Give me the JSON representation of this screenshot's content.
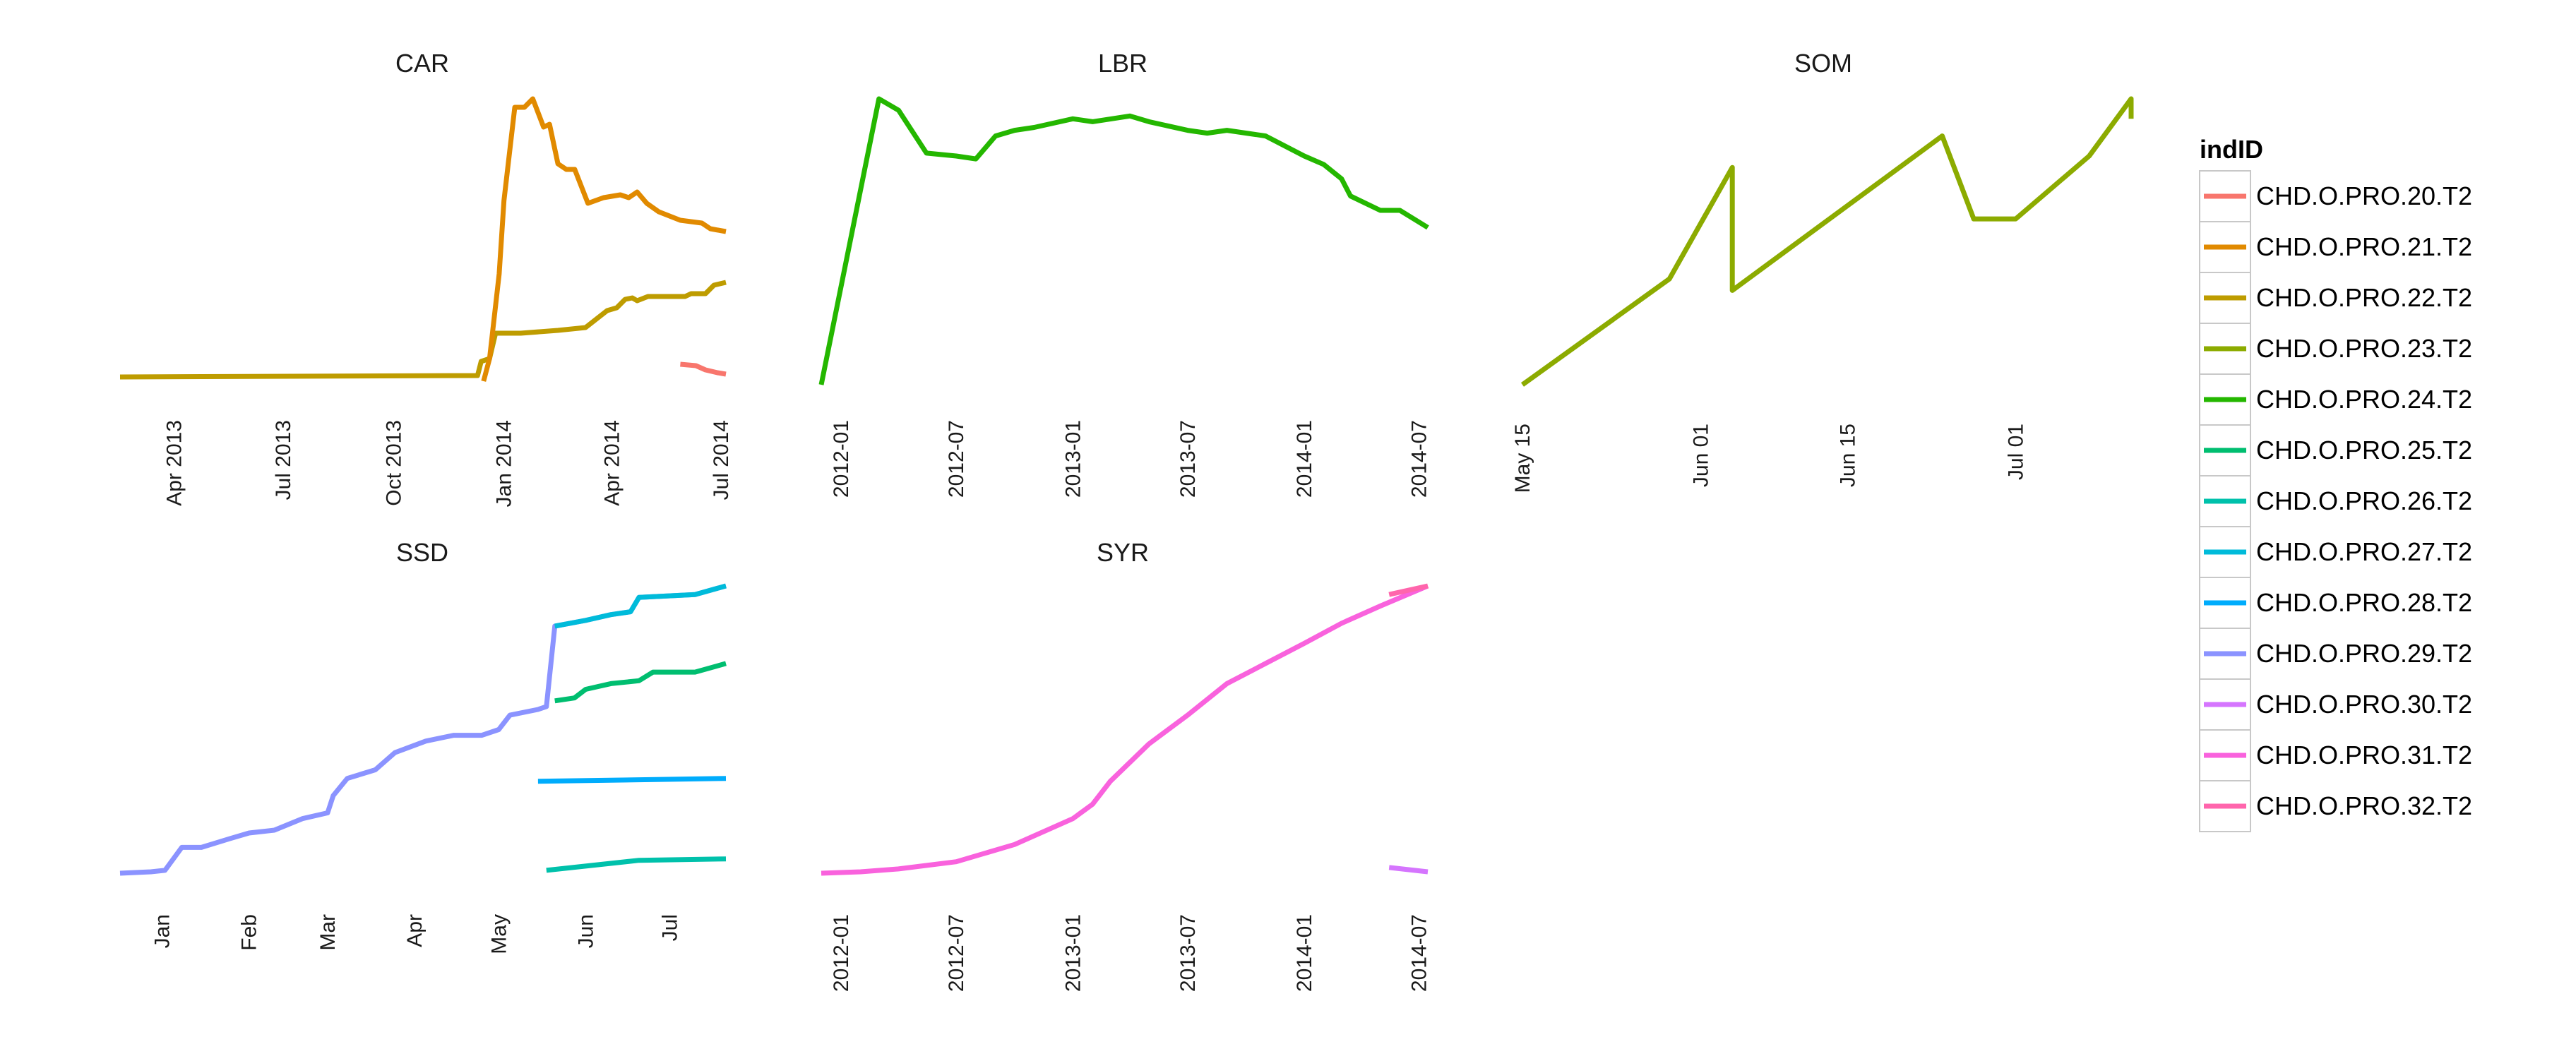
{
  "chart_data": {
    "type": "line",
    "layout": "facets",
    "y_axis_shown": false,
    "grid": false,
    "legend": {
      "title": "indID",
      "position": "right",
      "entries": [
        {
          "name": "CHD.O.PRO.20.T2",
          "color": "#F8766D"
        },
        {
          "name": "CHD.O.PRO.21.T2",
          "color": "#E18A00"
        },
        {
          "name": "CHD.O.PRO.22.T2",
          "color": "#BE9C00"
        },
        {
          "name": "CHD.O.PRO.23.T2",
          "color": "#8CAB00"
        },
        {
          "name": "CHD.O.PRO.24.T2",
          "color": "#24B700"
        },
        {
          "name": "CHD.O.PRO.25.T2",
          "color": "#00BE70"
        },
        {
          "name": "CHD.O.PRO.26.T2",
          "color": "#00C1AB"
        },
        {
          "name": "CHD.O.PRO.27.T2",
          "color": "#00BBDA"
        },
        {
          "name": "CHD.O.PRO.28.T2",
          "color": "#00ACFC"
        },
        {
          "name": "CHD.O.PRO.29.T2",
          "color": "#8B93FF"
        },
        {
          "name": "CHD.O.PRO.30.T2",
          "color": "#D575FE"
        },
        {
          "name": "CHD.O.PRO.31.T2",
          "color": "#F962DD"
        },
        {
          "name": "CHD.O.PRO.32.T2",
          "color": "#FF65AC"
        }
      ]
    },
    "panels": [
      {
        "title": "CAR",
        "xlim": [
          "2013-02-15",
          "2014-07-05"
        ],
        "ylim": [
          0,
          100
        ],
        "ticks": [
          {
            "date": "2013-04-01",
            "label": "Apr 2013"
          },
          {
            "date": "2013-07-01",
            "label": "Jul 2013"
          },
          {
            "date": "2013-10-01",
            "label": "Oct 2013"
          },
          {
            "date": "2014-01-01",
            "label": "Jan 2014"
          },
          {
            "date": "2014-04-01",
            "label": "Apr 2014"
          },
          {
            "date": "2014-07-01",
            "label": "Jul 2014"
          }
        ],
        "series": [
          {
            "name": "CHD.O.PRO.22.T2",
            "points": [
              [
                "2013-02-15",
                1.5
              ],
              [
                "2013-12-10",
                2
              ],
              [
                "2013-12-13",
                7
              ],
              [
                "2013-12-20",
                8
              ],
              [
                "2013-12-25",
                17
              ],
              [
                "2014-01-15",
                17
              ],
              [
                "2014-02-15",
                18
              ],
              [
                "2014-03-10",
                19
              ],
              [
                "2014-03-28",
                25
              ],
              [
                "2014-04-05",
                26
              ],
              [
                "2014-04-12",
                29
              ],
              [
                "2014-04-18",
                29.5
              ],
              [
                "2014-04-22",
                28.5
              ],
              [
                "2014-05-01",
                30
              ],
              [
                "2014-06-01",
                30
              ],
              [
                "2014-06-06",
                31
              ],
              [
                "2014-06-18",
                31
              ],
              [
                "2014-06-25",
                34
              ],
              [
                "2014-07-05",
                35
              ]
            ]
          },
          {
            "name": "CHD.O.PRO.21.T2",
            "points": [
              [
                "2013-12-15",
                0
              ],
              [
                "2013-12-20",
                8
              ],
              [
                "2013-12-28",
                38
              ],
              [
                "2014-01-01",
                64
              ],
              [
                "2014-01-10",
                97
              ],
              [
                "2014-01-18",
                97
              ],
              [
                "2014-01-25",
                100
              ],
              [
                "2014-02-03",
                90
              ],
              [
                "2014-02-08",
                91
              ],
              [
                "2014-02-15",
                77
              ],
              [
                "2014-02-22",
                75
              ],
              [
                "2014-03-01",
                75
              ],
              [
                "2014-03-12",
                63
              ],
              [
                "2014-03-25",
                65
              ],
              [
                "2014-04-08",
                66
              ],
              [
                "2014-04-15",
                65
              ],
              [
                "2014-04-22",
                67
              ],
              [
                "2014-04-30",
                63
              ],
              [
                "2014-05-10",
                60
              ],
              [
                "2014-05-28",
                57
              ],
              [
                "2014-06-15",
                56
              ],
              [
                "2014-06-22",
                54
              ],
              [
                "2014-07-05",
                53
              ]
            ]
          },
          {
            "name": "CHD.O.PRO.20.T2",
            "points": [
              [
                "2014-05-28",
                6
              ],
              [
                "2014-06-10",
                5.5
              ],
              [
                "2014-06-18",
                4
              ],
              [
                "2014-06-28",
                3
              ],
              [
                "2014-07-05",
                2.5
              ]
            ]
          }
        ]
      },
      {
        "title": "LBR",
        "xlim": [
          "2011-12-01",
          "2014-07-15"
        ],
        "ylim": [
          0,
          100
        ],
        "ticks": [
          {
            "date": "2012-01-01",
            "label": "2012-01"
          },
          {
            "date": "2012-07-01",
            "label": "2012-07"
          },
          {
            "date": "2013-01-01",
            "label": "2013-01"
          },
          {
            "date": "2013-07-01",
            "label": "2013-07"
          },
          {
            "date": "2014-01-01",
            "label": "2014-01"
          },
          {
            "date": "2014-07-01",
            "label": "2014-07"
          }
        ],
        "series": [
          {
            "name": "CHD.O.PRO.24.T2",
            "points": [
              [
                "2011-12-01",
                0
              ],
              [
                "2012-03-01",
                100
              ],
              [
                "2012-04-01",
                96
              ],
              [
                "2012-05-15",
                81
              ],
              [
                "2012-07-01",
                80
              ],
              [
                "2012-08-01",
                79
              ],
              [
                "2012-09-01",
                87
              ],
              [
                "2012-10-01",
                89
              ],
              [
                "2012-11-01",
                90
              ],
              [
                "2013-01-01",
                93
              ],
              [
                "2013-02-01",
                92
              ],
              [
                "2013-04-01",
                94
              ],
              [
                "2013-05-01",
                92
              ],
              [
                "2013-07-01",
                89
              ],
              [
                "2013-08-01",
                88
              ],
              [
                "2013-09-01",
                89
              ],
              [
                "2013-11-01",
                87
              ],
              [
                "2014-01-01",
                80
              ],
              [
                "2014-02-01",
                77
              ],
              [
                "2014-03-01",
                72
              ],
              [
                "2014-03-15",
                66
              ],
              [
                "2014-05-01",
                61
              ],
              [
                "2014-06-01",
                61
              ],
              [
                "2014-07-15",
                55
              ]
            ]
          }
        ]
      },
      {
        "title": "SOM",
        "xlim": [
          "2014-05-15",
          "2014-07-12"
        ],
        "ylim": [
          0,
          100
        ],
        "ticks": [
          {
            "date": "2014-05-15",
            "label": "May 15"
          },
          {
            "date": "2014-06-01",
            "label": "Jun 01"
          },
          {
            "date": "2014-06-15",
            "label": "Jun 15"
          },
          {
            "date": "2014-07-01",
            "label": "Jul 01"
          }
        ],
        "series": [
          {
            "name": "CHD.O.PRO.23.T2",
            "points": [
              [
                "2014-05-15",
                0
              ],
              [
                "2014-05-29",
                37
              ],
              [
                "2014-06-04",
                76
              ],
              [
                "2014-06-04",
                33
              ],
              [
                "2014-06-24",
                87
              ],
              [
                "2014-06-27",
                58
              ],
              [
                "2014-07-01",
                58
              ],
              [
                "2014-07-08",
                80
              ],
              [
                "2014-07-12",
                100
              ],
              [
                "2014-07-12",
                93
              ]
            ]
          }
        ]
      },
      {
        "title": "SSD",
        "xlim": [
          "2013-12-17",
          "2014-07-21"
        ],
        "ylim": [
          0,
          100
        ],
        "ticks": [
          {
            "date": "2014-01-01",
            "label": "Jan"
          },
          {
            "date": "2014-02-01",
            "label": "Feb"
          },
          {
            "date": "2014-03-01",
            "label": "Mar"
          },
          {
            "date": "2014-04-01",
            "label": "Apr"
          },
          {
            "date": "2014-05-01",
            "label": "May"
          },
          {
            "date": "2014-06-01",
            "label": "Jun"
          },
          {
            "date": "2014-07-01",
            "label": "Jul"
          }
        ],
        "series": [
          {
            "name": "CHD.O.PRO.29.T2",
            "points": [
              [
                "2013-12-17",
                0
              ],
              [
                "2013-12-28",
                0.5
              ],
              [
                "2014-01-02",
                1
              ],
              [
                "2014-01-05",
                5
              ],
              [
                "2014-01-08",
                9
              ],
              [
                "2014-01-15",
                9
              ],
              [
                "2014-01-25",
                12
              ],
              [
                "2014-02-01",
                14
              ],
              [
                "2014-02-10",
                15
              ],
              [
                "2014-02-20",
                19
              ],
              [
                "2014-03-01",
                21
              ],
              [
                "2014-03-03",
                27
              ],
              [
                "2014-03-08",
                33
              ],
              [
                "2014-03-18",
                36
              ],
              [
                "2014-03-25",
                42
              ],
              [
                "2014-04-05",
                46
              ],
              [
                "2014-04-15",
                48
              ],
              [
                "2014-04-25",
                48
              ],
              [
                "2014-05-01",
                50
              ],
              [
                "2014-05-05",
                55
              ],
              [
                "2014-05-15",
                57
              ],
              [
                "2014-05-18",
                58
              ],
              [
                "2014-05-21",
                86
              ],
              [
                "2014-06-01",
                88
              ],
              [
                "2014-06-10",
                90
              ],
              [
                "2014-06-17",
                91
              ],
              [
                "2014-06-20",
                96
              ],
              [
                "2014-07-10",
                97
              ],
              [
                "2014-07-21",
                100
              ]
            ]
          },
          {
            "name": "CHD.O.PRO.27.T2",
            "points": [
              [
                "2014-05-21",
                86
              ],
              [
                "2014-06-01",
                88
              ],
              [
                "2014-06-10",
                90
              ],
              [
                "2014-06-17",
                91
              ],
              [
                "2014-06-20",
                96
              ],
              [
                "2014-07-10",
                97
              ],
              [
                "2014-07-21",
                100
              ]
            ]
          },
          {
            "name": "CHD.O.PRO.25.T2",
            "points": [
              [
                "2014-05-21",
                60
              ],
              [
                "2014-05-28",
                61
              ],
              [
                "2014-06-01",
                64
              ],
              [
                "2014-06-10",
                66
              ],
              [
                "2014-06-20",
                67
              ],
              [
                "2014-06-25",
                70
              ],
              [
                "2014-07-10",
                70
              ],
              [
                "2014-07-21",
                73
              ]
            ]
          },
          {
            "name": "CHD.O.PRO.28.T2",
            "points": [
              [
                "2014-05-15",
                32
              ],
              [
                "2014-07-21",
                33
              ]
            ]
          },
          {
            "name": "CHD.O.PRO.26.T2",
            "points": [
              [
                "2014-05-18",
                1
              ],
              [
                "2014-06-20",
                4.5
              ],
              [
                "2014-07-21",
                5
              ]
            ]
          }
        ]
      },
      {
        "title": "SYR",
        "xlim": [
          "2011-12-01",
          "2014-07-15"
        ],
        "ylim": [
          0,
          100
        ],
        "ticks": [
          {
            "date": "2012-01-01",
            "label": "2012-01"
          },
          {
            "date": "2012-07-01",
            "label": "2012-07"
          },
          {
            "date": "2013-01-01",
            "label": "2013-01"
          },
          {
            "date": "2013-07-01",
            "label": "2013-07"
          },
          {
            "date": "2014-01-01",
            "label": "2014-01"
          },
          {
            "date": "2014-07-01",
            "label": "2014-07"
          }
        ],
        "series": [
          {
            "name": "CHD.O.PRO.31.T2",
            "points": [
              [
                "2011-12-01",
                0
              ],
              [
                "2012-02-01",
                0.5
              ],
              [
                "2012-04-01",
                1.5
              ],
              [
                "2012-07-01",
                4
              ],
              [
                "2012-10-01",
                10
              ],
              [
                "2013-01-01",
                19
              ],
              [
                "2013-02-01",
                24
              ],
              [
                "2013-03-01",
                32
              ],
              [
                "2013-05-01",
                45
              ],
              [
                "2013-07-01",
                55
              ],
              [
                "2013-09-01",
                66
              ],
              [
                "2013-11-01",
                73
              ],
              [
                "2014-01-01",
                80
              ],
              [
                "2014-03-01",
                87
              ],
              [
                "2014-05-01",
                93
              ],
              [
                "2014-07-15",
                100
              ]
            ]
          },
          {
            "name": "CHD.O.PRO.32.T2",
            "points": [
              [
                "2014-05-15",
                97
              ],
              [
                "2014-07-15",
                100
              ]
            ]
          },
          {
            "name": "CHD.O.PRO.30.T2",
            "points": [
              [
                "2014-05-15",
                2
              ],
              [
                "2014-07-15",
                0.5
              ]
            ]
          }
        ]
      }
    ]
  }
}
